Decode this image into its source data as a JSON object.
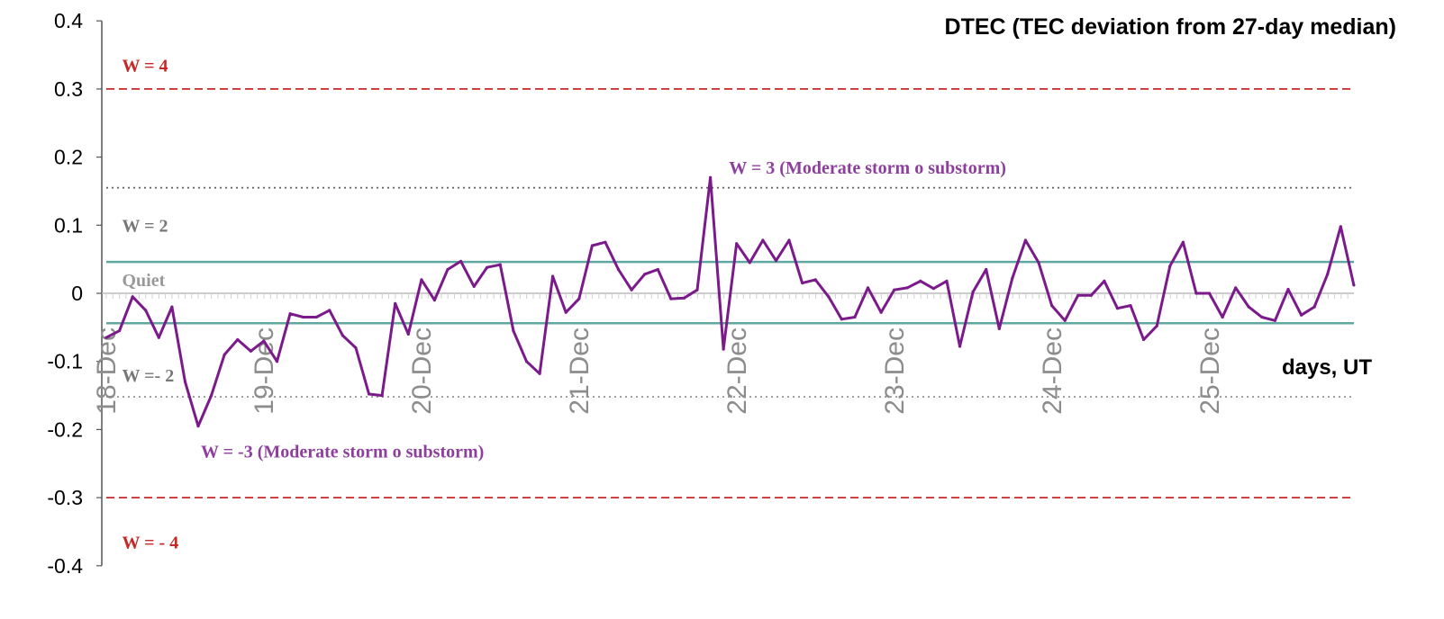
{
  "chart_data": {
    "type": "line",
    "title": "DTEC (TEC deviation from 27-day median)",
    "xlabel": "days, UT",
    "ylabel": "",
    "ylim": [
      -0.4,
      0.4
    ],
    "yticks": [
      0.4,
      0.3,
      0.2,
      0.1,
      0,
      -0.1,
      -0.2,
      -0.3,
      -0.4
    ],
    "ytick_labels": [
      "0.4",
      "0.3",
      "0.2",
      "0.1",
      "0",
      "-0.1",
      "-0.2",
      "-0.3",
      "-0.4"
    ],
    "xlim": [
      0,
      8.5
    ],
    "xticks": [
      0,
      1,
      2,
      3,
      4,
      5,
      6,
      7
    ],
    "xtick_labels": [
      "18-Dec",
      "19-Dec",
      "20-Dec",
      "21-Dec",
      "22-Dec",
      "23-Dec",
      "24-Dec",
      "25-Dec"
    ],
    "grid": false,
    "series": [
      {
        "color": "#7b1a8a",
        "x_step_days": 0.0833,
        "values": [
          -0.065,
          -0.055,
          -0.005,
          -0.025,
          -0.065,
          -0.02,
          -0.13,
          -0.195,
          -0.15,
          -0.09,
          -0.068,
          -0.085,
          -0.07,
          -0.1,
          -0.03,
          -0.035,
          -0.035,
          -0.025,
          -0.062,
          -0.08,
          -0.148,
          -0.15,
          -0.015,
          -0.06,
          0.02,
          -0.01,
          0.035,
          0.047,
          0.01,
          0.038,
          0.042,
          -0.055,
          -0.1,
          -0.118,
          0.025,
          -0.028,
          -0.008,
          0.07,
          0.075,
          0.035,
          0.005,
          0.028,
          0.035,
          -0.008,
          -0.007,
          0.005,
          0.17,
          -0.082,
          0.073,
          0.045,
          0.078,
          0.048,
          0.078,
          0.015,
          0.02,
          -0.005,
          -0.038,
          -0.035,
          0.008,
          -0.028,
          0.005,
          0.008,
          0.018,
          0.007,
          0.018,
          -0.078,
          0.002,
          0.035,
          -0.052,
          0.022,
          0.078,
          0.045,
          -0.018,
          -0.04,
          -0.003,
          -0.003,
          0.018,
          -0.022,
          -0.018,
          -0.068,
          -0.048,
          0.04,
          0.075,
          0.0,
          0.0,
          -0.035,
          0.008,
          -0.02,
          -0.035,
          -0.04,
          0.006,
          -0.032,
          -0.02,
          0.028,
          0.098,
          0.012
        ]
      }
    ],
    "reference_lines": [
      {
        "y": 0.3,
        "style": "dashed",
        "color": "#c62828"
      },
      {
        "y": -0.3,
        "style": "dashed",
        "color": "#c62828"
      },
      {
        "y": 0.155,
        "style": "dotted",
        "color": "#666666"
      },
      {
        "y": -0.152,
        "style": "dotted",
        "color": "#999999"
      },
      {
        "y": 0.046,
        "style": "solid",
        "color": "#5fa8a0"
      },
      {
        "y": -0.044,
        "style": "solid",
        "color": "#5fa8a0"
      }
    ],
    "annotations": [
      {
        "text": "W = 4",
        "color": "#c62828",
        "x": 0.1,
        "y": 0.335
      },
      {
        "text": "W = 3 (Moderate storm o substorm)",
        "color": "#8e3f9e",
        "x": 3.95,
        "y": 0.185
      },
      {
        "text": "W = 2",
        "color": "#777777",
        "x": 0.1,
        "y": 0.1
      },
      {
        "text": "Quiet",
        "color": "#999999",
        "x": 0.1,
        "y": 0.02
      },
      {
        "text": "W =- 2",
        "color": "#777777",
        "x": 0.1,
        "y": -0.12
      },
      {
        "text": "W = -3 (Moderate storm o substorm)",
        "color": "#8e3f9e",
        "x": 0.6,
        "y": -0.232
      },
      {
        "text": "W = - 4",
        "color": "#c62828",
        "x": 0.1,
        "y": -0.365
      }
    ]
  }
}
